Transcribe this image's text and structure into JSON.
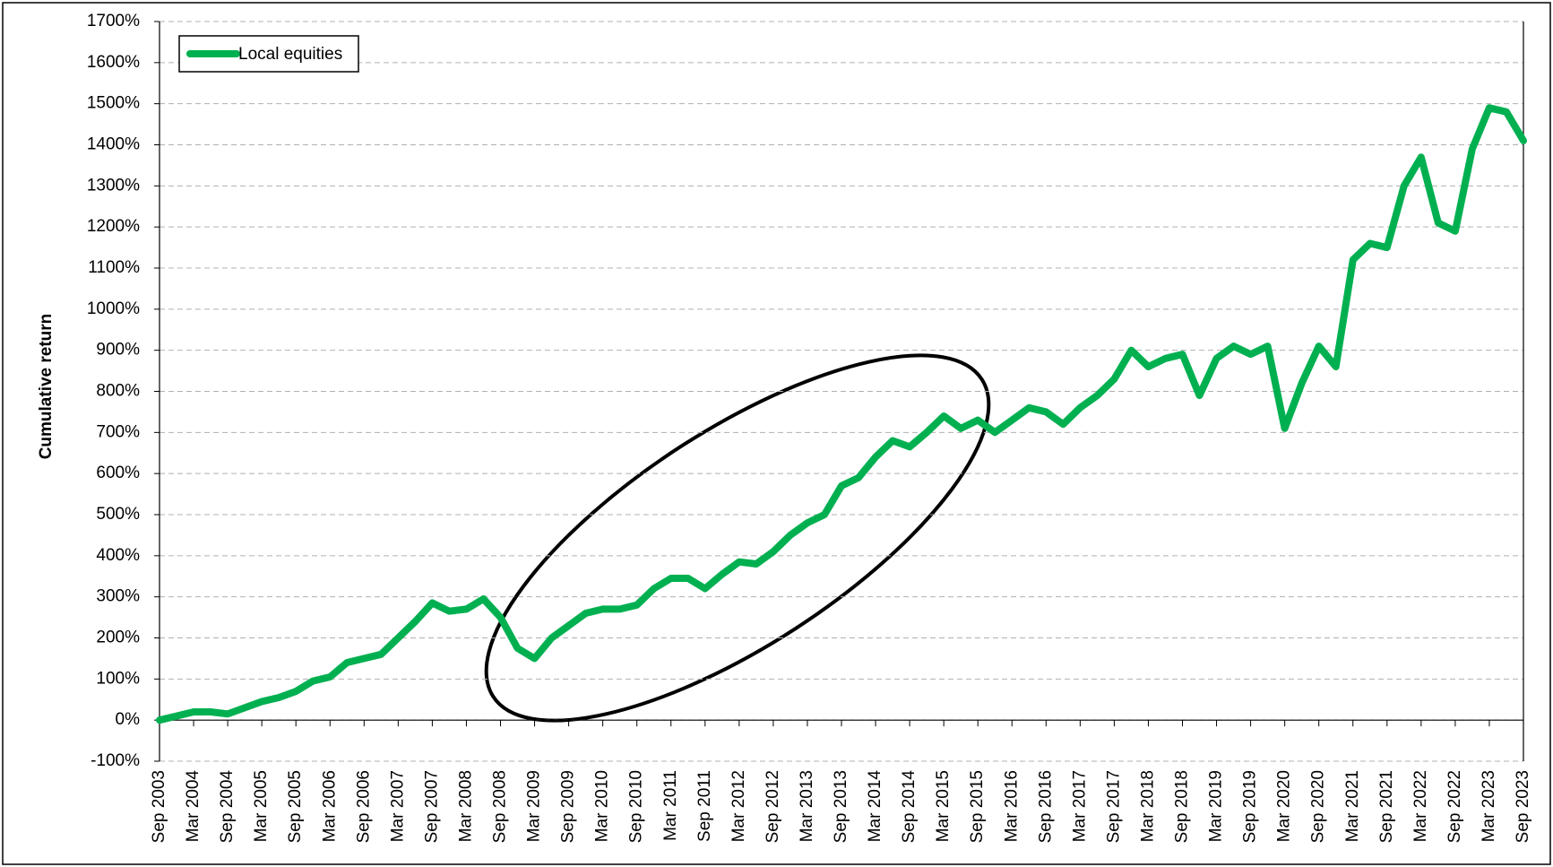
{
  "chart_data": {
    "type": "line",
    "y_label": "Cumulative return",
    "categories": [
      "Sep 2003",
      null,
      "Mar 2004",
      null,
      "Sep 2004",
      null,
      "Mar 2005",
      null,
      "Sep 2005",
      null,
      "Mar 2006",
      null,
      "Sep 2006",
      null,
      "Mar 2007",
      null,
      "Sep 2007",
      null,
      "Mar 2008",
      null,
      "Sep 2008",
      null,
      "Mar 2009",
      null,
      "Sep 2009",
      null,
      "Mar 2010",
      null,
      "Sep 2010",
      null,
      "Mar 2011",
      null,
      "Sep 2011",
      null,
      "Mar 2012",
      null,
      "Sep 2012",
      null,
      "Mar 2013",
      null,
      "Sep 2013",
      null,
      "Mar 2014",
      null,
      "Sep 2014",
      null,
      "Mar 2015",
      null,
      "Sep 2015",
      null,
      "Mar 2016",
      null,
      "Sep 2016",
      null,
      "Mar 2017",
      null,
      "Sep 2017",
      null,
      "Mar 2018",
      null,
      "Sep 2018",
      null,
      "Mar 2019",
      null,
      "Sep 2019",
      null,
      "Mar 2020",
      null,
      "Sep 2020",
      null,
      "Mar 2021",
      null,
      "Sep 2021",
      null,
      "Mar 2022",
      null,
      "Sep 2022",
      null,
      "Mar 2023",
      null,
      "Sep 2023"
    ],
    "series": [
      {
        "name": "Local equities",
        "color": "#00b050",
        "values": [
          0,
          10,
          20,
          20,
          15,
          30,
          45,
          55,
          70,
          95,
          105,
          140,
          150,
          160,
          200,
          240,
          285,
          265,
          270,
          295,
          250,
          175,
          150,
          200,
          230,
          260,
          270,
          270,
          280,
          320,
          345,
          345,
          320,
          355,
          385,
          380,
          410,
          450,
          480,
          500,
          570,
          590,
          640,
          680,
          665,
          700,
          740,
          710,
          730,
          700,
          730,
          760,
          750,
          720,
          760,
          790,
          830,
          900,
          860,
          880,
          890,
          790,
          880,
          910,
          890,
          910,
          710,
          820,
          910,
          860,
          1120,
          1160,
          1150,
          1300,
          1370,
          1210,
          1190,
          1390,
          1490,
          1480,
          1410
        ]
      }
    ],
    "ylim": [
      -100,
      1700
    ],
    "yticks": [
      {
        "value": -100,
        "label": "-100%"
      },
      {
        "value": 0,
        "label": "0%"
      },
      {
        "value": 100,
        "label": "100%"
      },
      {
        "value": 200,
        "label": "200%"
      },
      {
        "value": 300,
        "label": "300%"
      },
      {
        "value": 400,
        "label": "400%"
      },
      {
        "value": 500,
        "label": "500%"
      },
      {
        "value": 600,
        "label": "600%"
      },
      {
        "value": 700,
        "label": "700%"
      },
      {
        "value": 800,
        "label": "800%"
      },
      {
        "value": 900,
        "label": "900%"
      },
      {
        "value": 1000,
        "label": "1000%"
      },
      {
        "value": 1100,
        "label": "1100%"
      },
      {
        "value": 1200,
        "label": "1200%"
      },
      {
        "value": 1300,
        "label": "1300%"
      },
      {
        "value": 1400,
        "label": "1400%"
      },
      {
        "value": 1500,
        "label": "1500%"
      },
      {
        "value": 1600,
        "label": "1600%"
      },
      {
        "value": 1700,
        "label": "1700%"
      }
    ],
    "grid": true,
    "legend": "upper left"
  }
}
